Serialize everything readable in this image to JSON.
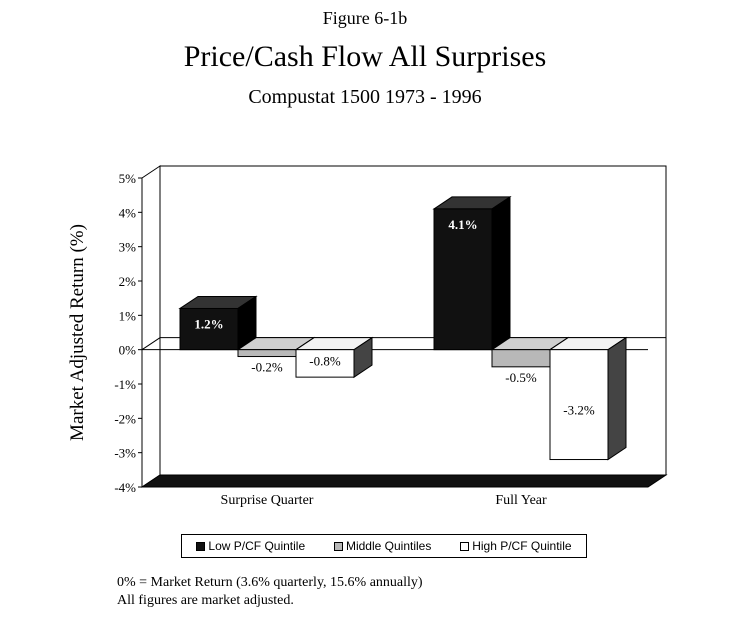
{
  "figure_label": "Figure 6-1b",
  "title": "Price/Cash Flow  All Surprises",
  "subtitle": "Compustat 1500 1973 - 1996",
  "notes": [
    "0% = Market Return (3.6% quarterly, 15.6% annually)",
    "All figures are market adjusted."
  ],
  "colors": {
    "low": "#111111",
    "middle": "#b8b8b8",
    "high": "#ffffff"
  },
  "chart_data": {
    "type": "bar",
    "title": "Price/Cash Flow  All Surprises",
    "subtitle": "Compustat 1500 1973 - 1996",
    "ylabel": "Market Adjusted Return (%)",
    "xlabel": "",
    "ylim": [
      -4,
      5
    ],
    "yticks": [
      "5%",
      "4%",
      "3%",
      "2%",
      "1%",
      "0%",
      "-1%",
      "-2%",
      "-3%",
      "-4%"
    ],
    "categories": [
      "Surprise Quarter",
      "Full Year"
    ],
    "series": [
      {
        "name": "Low P/CF Quintile",
        "values": [
          1.2,
          4.1
        ],
        "labels": [
          "1.2%",
          "4.1%"
        ]
      },
      {
        "name": "Middle Quintiles",
        "values": [
          -0.2,
          -0.5
        ],
        "labels": [
          "-0.2%",
          "-0.5%"
        ]
      },
      {
        "name": "High P/CF Quintile",
        "values": [
          -0.8,
          -3.2
        ],
        "labels": [
          "-0.8%",
          "-3.2%"
        ]
      }
    ],
    "legend_position": "bottom",
    "grid": false
  }
}
